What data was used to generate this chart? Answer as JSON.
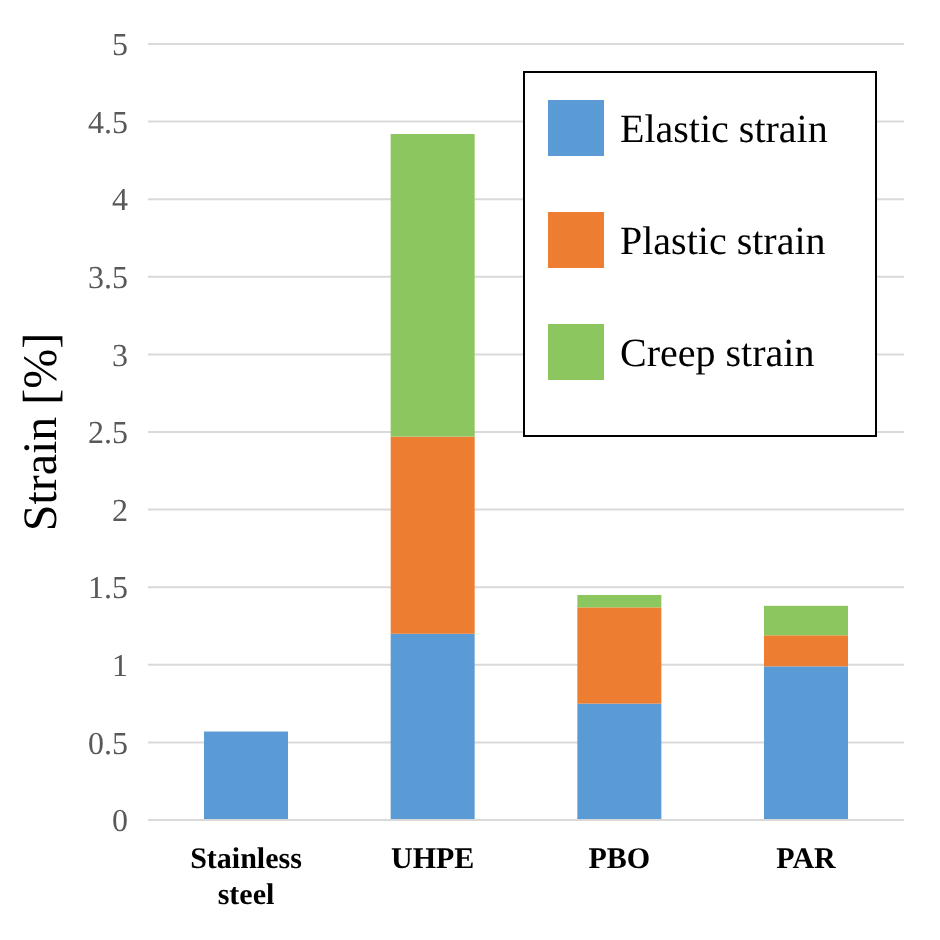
{
  "chart_data": {
    "type": "bar",
    "stacked": true,
    "ylabel": "Strain [%]",
    "categories": [
      "Stainless steel",
      "UHPE",
      "PBO",
      "PAR"
    ],
    "series": [
      {
        "name": "Elastic strain",
        "color": "#5b9bd5",
        "values": [
          0.57,
          1.2,
          0.75,
          0.99
        ]
      },
      {
        "name": "Plastic strain",
        "color": "#ed7d31",
        "values": [
          null,
          1.27,
          0.62,
          0.2
        ]
      },
      {
        "name": "Creep strain",
        "color": "#8cc65e",
        "values": [
          null,
          1.95,
          0.08,
          0.19
        ]
      }
    ],
    "ylim": [
      0,
      5
    ],
    "yticks": [
      0,
      0.5,
      1,
      1.5,
      2,
      2.5,
      3,
      3.5,
      4,
      4.5,
      5
    ],
    "grid": "y",
    "legend": "top right"
  }
}
